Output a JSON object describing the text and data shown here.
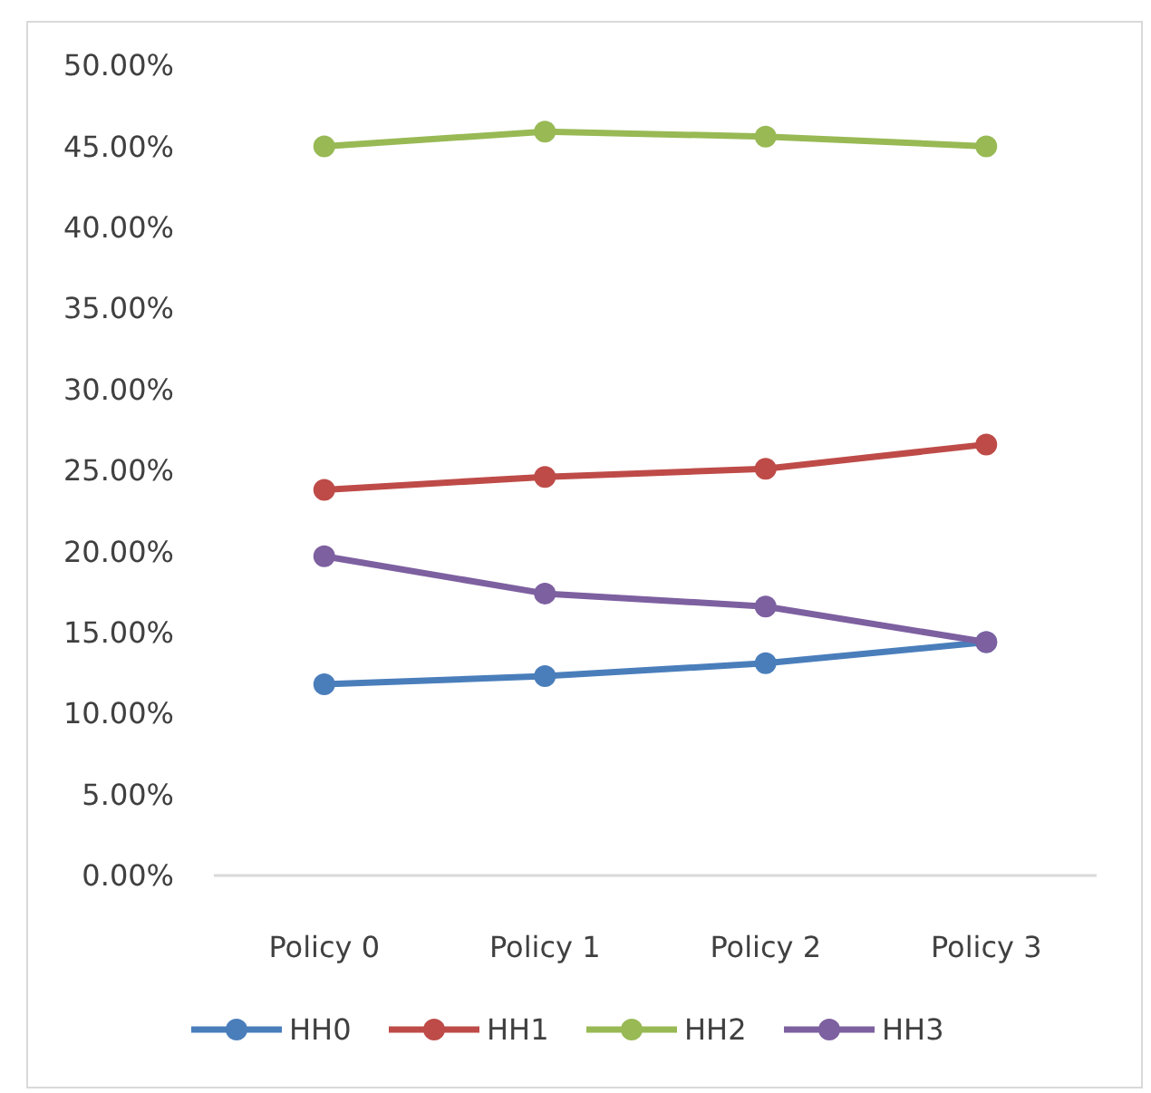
{
  "chart_data": {
    "type": "line",
    "categories": [
      "Policy 0",
      "Policy 1",
      "Policy 2",
      "Policy 3"
    ],
    "series": [
      {
        "name": "HH0",
        "color": "#4a7ebb",
        "values": [
          11.8,
          12.3,
          13.1,
          14.4
        ]
      },
      {
        "name": "HH1",
        "color": "#be4b48",
        "values": [
          23.8,
          24.6,
          25.1,
          26.6
        ]
      },
      {
        "name": "HH2",
        "color": "#98b954",
        "values": [
          45.0,
          45.9,
          45.6,
          45.0
        ]
      },
      {
        "name": "HH3",
        "color": "#7d60a0",
        "values": [
          19.7,
          17.4,
          16.6,
          14.4
        ]
      }
    ],
    "ylim": [
      0,
      50
    ],
    "yticks": [
      {
        "value": 0,
        "label": "0.00%"
      },
      {
        "value": 5,
        "label": "5.00%"
      },
      {
        "value": 10,
        "label": "10.00%"
      },
      {
        "value": 15,
        "label": "15.00%"
      },
      {
        "value": 20,
        "label": "20.00%"
      },
      {
        "value": 25,
        "label": "25.00%"
      },
      {
        "value": 30,
        "label": "30.00%"
      },
      {
        "value": 35,
        "label": "35.00%"
      },
      {
        "value": 40,
        "label": "40.00%"
      },
      {
        "value": 45,
        "label": "45.00%"
      },
      {
        "value": 50,
        "label": "50.00%"
      }
    ],
    "grid": false,
    "legend": "bottom",
    "marker": "circle",
    "line_style": "solid"
  }
}
